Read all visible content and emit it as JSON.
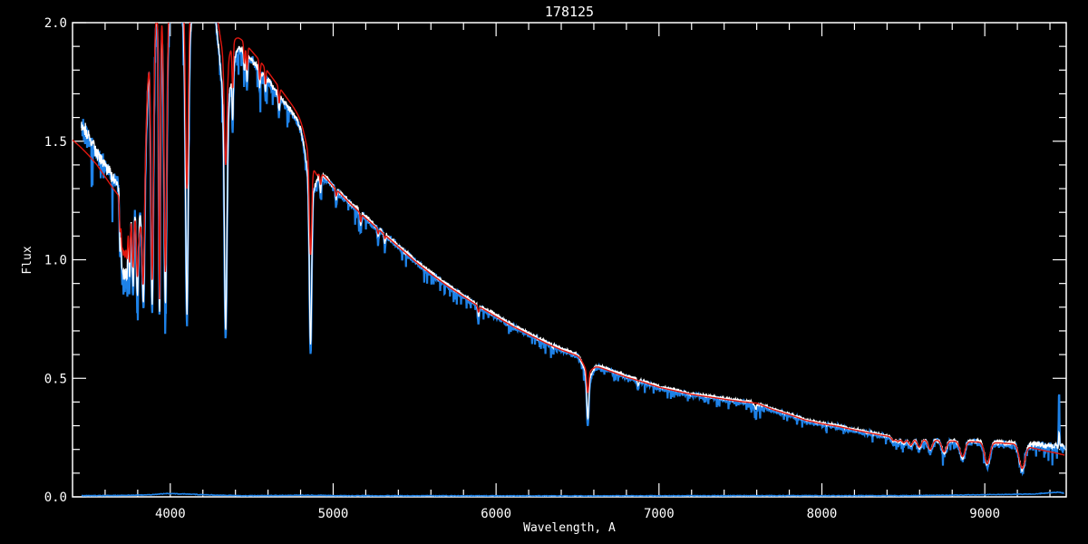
{
  "window": {
    "background": "#000000"
  },
  "chart_data": {
    "type": "line",
    "title": "178125",
    "xlabel": "Wavelength, A",
    "ylabel": "Flux",
    "xlim": [
      3400,
      9500
    ],
    "ylim": [
      0.0,
      2.0
    ],
    "grid": false,
    "frame": true,
    "legend": "none",
    "x_ticks": [
      {
        "v": 4000,
        "label": "4000"
      },
      {
        "v": 5000,
        "label": "5000"
      },
      {
        "v": 6000,
        "label": "6000"
      },
      {
        "v": 7000,
        "label": "7000"
      },
      {
        "v": 8000,
        "label": "8000"
      },
      {
        "v": 9000,
        "label": "9000"
      }
    ],
    "y_ticks": [
      {
        "v": 0.0,
        "label": "0.0"
      },
      {
        "v": 0.5,
        "label": "0.5"
      },
      {
        "v": 1.0,
        "label": "1.0"
      },
      {
        "v": 1.5,
        "label": "1.5"
      },
      {
        "v": 2.0,
        "label": "2.0"
      }
    ],
    "x_minor_step": 200,
    "y_minor_step": 0.1,
    "colors": {
      "observed_white": "#ffffff",
      "observed_blue": "#1e82e8",
      "model_red": "#e0170f",
      "axis": "#ffffff",
      "background": "#000000"
    },
    "series_names": [
      "observed (blue)",
      "observed (white)",
      "model fit (red)",
      "error spectrum (blue, bottom)"
    ],
    "data_range": [
      3455,
      9490
    ],
    "model_range": [
      3400,
      9490
    ],
    "continuum_observed": [
      [
        3455,
        1.57
      ],
      [
        3480,
        1.54
      ],
      [
        3520,
        1.49
      ],
      [
        3560,
        1.44
      ],
      [
        3600,
        1.4
      ],
      [
        3640,
        1.355
      ],
      [
        3680,
        1.315
      ],
      [
        3720,
        1.28
      ],
      [
        3750,
        1.26
      ],
      [
        3780,
        1.245
      ],
      [
        3805,
        1.235
      ],
      [
        3820,
        1.27
      ],
      [
        3840,
        1.45
      ],
      [
        3855,
        1.72
      ],
      [
        3870,
        2.02
      ],
      [
        3890,
        2.12
      ],
      [
        3950,
        2.2
      ],
      [
        4050,
        2.25
      ],
      [
        4150,
        2.2
      ],
      [
        4250,
        2.1
      ],
      [
        4310,
        2.0
      ],
      [
        4340,
        1.96
      ],
      [
        4380,
        1.93
      ],
      [
        4450,
        1.885
      ],
      [
        4550,
        1.8
      ],
      [
        4650,
        1.71
      ],
      [
        4750,
        1.62
      ],
      [
        4820,
        1.55
      ],
      [
        4860,
        1.49
      ],
      [
        4900,
        1.4
      ],
      [
        4920,
        1.375
      ],
      [
        5000,
        1.31
      ],
      [
        5100,
        1.245
      ],
      [
        5200,
        1.18
      ],
      [
        5300,
        1.12
      ],
      [
        5400,
        1.06
      ],
      [
        5500,
        1.0
      ],
      [
        5600,
        0.945
      ],
      [
        5700,
        0.895
      ],
      [
        5800,
        0.85
      ],
      [
        5900,
        0.805
      ],
      [
        6000,
        0.765
      ],
      [
        6100,
        0.725
      ],
      [
        6200,
        0.69
      ],
      [
        6300,
        0.655
      ],
      [
        6400,
        0.625
      ],
      [
        6500,
        0.6
      ],
      [
        6600,
        0.56
      ],
      [
        6700,
        0.535
      ],
      [
        6800,
        0.51
      ],
      [
        6900,
        0.49
      ],
      [
        7000,
        0.465
      ],
      [
        7100,
        0.45
      ],
      [
        7200,
        0.435
      ],
      [
        7300,
        0.425
      ],
      [
        7400,
        0.415
      ],
      [
        7500,
        0.405
      ],
      [
        7600,
        0.398
      ],
      [
        7700,
        0.37
      ],
      [
        7800,
        0.35
      ],
      [
        7900,
        0.325
      ],
      [
        8000,
        0.31
      ],
      [
        8100,
        0.3
      ],
      [
        8200,
        0.285
      ],
      [
        8300,
        0.27
      ],
      [
        8400,
        0.258
      ],
      [
        8450,
        0.25
      ],
      [
        8520,
        0.246
      ],
      [
        8600,
        0.244
      ],
      [
        8700,
        0.241
      ],
      [
        8800,
        0.237
      ],
      [
        8900,
        0.236
      ],
      [
        9000,
        0.232
      ],
      [
        9100,
        0.229
      ],
      [
        9200,
        0.226
      ],
      [
        9300,
        0.221
      ],
      [
        9400,
        0.217
      ],
      [
        9490,
        0.215
      ]
    ],
    "continuum_model": [
      [
        3400,
        1.505
      ],
      [
        3450,
        1.475
      ],
      [
        3500,
        1.44
      ],
      [
        3550,
        1.4
      ],
      [
        3600,
        1.35
      ],
      [
        3650,
        1.3
      ],
      [
        3700,
        1.255
      ],
      [
        3750,
        1.225
      ],
      [
        3790,
        1.2
      ],
      [
        3812,
        1.18
      ],
      [
        3830,
        1.28
      ],
      [
        3845,
        1.55
      ],
      [
        3860,
        1.85
      ],
      [
        3875,
        2.06
      ],
      [
        3890,
        2.12
      ],
      [
        3950,
        2.22
      ],
      [
        4050,
        2.27
      ],
      [
        4150,
        2.22
      ],
      [
        4250,
        2.12
      ],
      [
        4310,
        2.02
      ],
      [
        4340,
        1.99
      ],
      [
        4380,
        1.97
      ],
      [
        4450,
        1.92
      ],
      [
        4550,
        1.84
      ],
      [
        4650,
        1.745
      ],
      [
        4750,
        1.65
      ],
      [
        4820,
        1.575
      ],
      [
        4860,
        1.53
      ],
      [
        4900,
        1.4
      ],
      [
        4920,
        1.375
      ],
      [
        5000,
        1.31
      ],
      [
        5100,
        1.24
      ],
      [
        5200,
        1.175
      ],
      [
        5300,
        1.115
      ],
      [
        5400,
        1.055
      ],
      [
        5500,
        0.995
      ],
      [
        5600,
        0.94
      ],
      [
        5700,
        0.89
      ],
      [
        5800,
        0.845
      ],
      [
        5900,
        0.8
      ],
      [
        6000,
        0.76
      ],
      [
        6100,
        0.72
      ],
      [
        6200,
        0.685
      ],
      [
        6300,
        0.65
      ],
      [
        6400,
        0.62
      ],
      [
        6500,
        0.595
      ],
      [
        6600,
        0.555
      ],
      [
        6700,
        0.53
      ],
      [
        6800,
        0.505
      ],
      [
        6900,
        0.485
      ],
      [
        7000,
        0.462
      ],
      [
        7100,
        0.447
      ],
      [
        7200,
        0.432
      ],
      [
        7300,
        0.422
      ],
      [
        7400,
        0.412
      ],
      [
        7500,
        0.402
      ],
      [
        7600,
        0.395
      ],
      [
        7700,
        0.368
      ],
      [
        7800,
        0.347
      ],
      [
        7900,
        0.323
      ],
      [
        8000,
        0.308
      ],
      [
        8100,
        0.297
      ],
      [
        8200,
        0.282
      ],
      [
        8300,
        0.268
      ],
      [
        8400,
        0.256
      ],
      [
        8450,
        0.249
      ],
      [
        8520,
        0.244
      ],
      [
        8600,
        0.242
      ],
      [
        8700,
        0.239
      ],
      [
        8800,
        0.235
      ],
      [
        8900,
        0.233
      ],
      [
        9000,
        0.23
      ],
      [
        9100,
        0.227
      ],
      [
        9200,
        0.222
      ],
      [
        9250,
        0.215
      ],
      [
        9300,
        0.205
      ],
      [
        9350,
        0.197
      ],
      [
        9400,
        0.19
      ],
      [
        9450,
        0.183
      ],
      [
        9490,
        0.176
      ]
    ],
    "line_columns": [
      "center_A",
      "blue_tip_flux",
      "white_tip_flux",
      "model_tip_flux",
      "core_width_A",
      "wing_width_A",
      "wing_fraction"
    ],
    "absorption_lines": [
      [
        3692,
        1.02,
        1.05,
        1.12,
        4,
        0,
        0
      ],
      [
        3703,
        0.95,
        0.99,
        1.07,
        4,
        0,
        0
      ],
      [
        3712,
        0.93,
        0.97,
        1.05,
        4,
        0,
        0
      ],
      [
        3722,
        0.91,
        0.95,
        1.03,
        4.5,
        0,
        0
      ],
      [
        3734,
        0.89,
        0.93,
        1.01,
        5,
        0,
        0
      ],
      [
        3750,
        0.87,
        0.91,
        0.99,
        5,
        0,
        0
      ],
      [
        3771,
        0.85,
        0.89,
        0.97,
        5.5,
        0,
        0
      ],
      [
        3798,
        0.83,
        0.87,
        0.95,
        6,
        0,
        0
      ],
      [
        3835,
        0.81,
        0.85,
        0.93,
        7,
        25,
        0.15
      ],
      [
        3889,
        0.79,
        0.83,
        0.92,
        7.5,
        25,
        0.15
      ],
      [
        3934,
        0.89,
        0.92,
        0.97,
        5,
        0,
        0
      ],
      [
        3970,
        0.77,
        0.81,
        0.95,
        8,
        28,
        0.18
      ],
      [
        4102,
        0.74,
        0.78,
        1.3,
        8,
        30,
        0.22
      ],
      [
        4340,
        0.67,
        0.71,
        1.4,
        8,
        32,
        0.25
      ],
      [
        4383,
        1.68,
        1.71,
        1.78,
        4,
        0,
        0
      ],
      [
        4455,
        1.76,
        1.79,
        1.83,
        4,
        0,
        0
      ],
      [
        4471,
        1.72,
        1.75,
        1.8,
        4,
        0,
        0
      ],
      [
        4549,
        1.7,
        1.73,
        1.76,
        4,
        0,
        0
      ],
      [
        4584,
        1.68,
        1.71,
        1.74,
        3.5,
        0,
        0
      ],
      [
        4668,
        1.6,
        1.63,
        1.66,
        4,
        0,
        0
      ],
      [
        4861,
        0.61,
        0.645,
        1.02,
        7,
        30,
        0.2
      ],
      [
        4923,
        1.28,
        1.31,
        1.33,
        4,
        0,
        0
      ],
      [
        5018,
        1.22,
        1.25,
        1.27,
        4,
        0,
        0
      ],
      [
        5169,
        1.11,
        1.14,
        1.16,
        4,
        0,
        0
      ],
      [
        5276,
        1.06,
        1.09,
        1.11,
        3.5,
        0,
        0
      ],
      [
        5317,
        1.04,
        1.07,
        1.09,
        3.5,
        0,
        0
      ],
      [
        5892,
        0.73,
        0.76,
        0.78,
        4.5,
        0,
        0
      ],
      [
        6347,
        0.61,
        0.63,
        0.645,
        3.5,
        0,
        0
      ],
      [
        6371,
        0.615,
        0.635,
        0.65,
        3,
        0,
        0
      ],
      [
        6563,
        0.3,
        0.33,
        0.44,
        6,
        24,
        0.3
      ],
      [
        6872,
        0.45,
        0.47,
        -1,
        5,
        0,
        0
      ],
      [
        7186,
        0.42,
        0.435,
        -1,
        4,
        0,
        0
      ],
      [
        7594,
        0.355,
        0.375,
        -1,
        6,
        0,
        0
      ],
      [
        8438,
        0.225,
        0.235,
        0.238,
        10,
        0,
        0
      ],
      [
        8467,
        0.22,
        0.23,
        0.233,
        10,
        0,
        0
      ],
      [
        8502,
        0.215,
        0.225,
        0.228,
        11,
        0,
        0
      ],
      [
        8545,
        0.205,
        0.215,
        0.218,
        12,
        0,
        0
      ],
      [
        8598,
        0.195,
        0.205,
        0.21,
        12,
        0,
        0
      ],
      [
        8665,
        0.185,
        0.195,
        0.2,
        13,
        0,
        0
      ],
      [
        8750,
        0.175,
        0.185,
        0.19,
        14,
        0,
        0
      ],
      [
        8863,
        0.155,
        0.165,
        0.17,
        15,
        0,
        0
      ],
      [
        9015,
        0.125,
        0.135,
        0.14,
        16,
        0,
        0
      ],
      [
        9229,
        0.105,
        0.115,
        0.12,
        17,
        0,
        0
      ]
    ],
    "noise_profile": [
      [
        3455,
        0.04
      ],
      [
        3600,
        0.032
      ],
      [
        3800,
        0.028
      ],
      [
        4300,
        0.02
      ],
      [
        4900,
        0.016
      ],
      [
        5500,
        0.012
      ],
      [
        6000,
        0.011
      ],
      [
        6600,
        0.009
      ],
      [
        7000,
        0.008
      ],
      [
        7600,
        0.008
      ],
      [
        8200,
        0.008
      ],
      [
        8600,
        0.009
      ],
      [
        8900,
        0.012
      ],
      [
        9200,
        0.015
      ],
      [
        9490,
        0.018
      ]
    ],
    "telluric_band": [
      7565,
      7650
    ],
    "emission_spike": {
      "center": 9456,
      "width": 2.5,
      "blue": 0.23,
      "white": 0.06
    },
    "error_spectrum": [
      [
        3455,
        0.005
      ],
      [
        3700,
        0.006
      ],
      [
        3850,
        0.008
      ],
      [
        3980,
        0.014
      ],
      [
        4100,
        0.012
      ],
      [
        4200,
        0.009
      ],
      [
        4350,
        0.006
      ],
      [
        4500,
        0.005
      ],
      [
        4861,
        0.007
      ],
      [
        5000,
        0.005
      ],
      [
        6500,
        0.004
      ],
      [
        7600,
        0.005
      ],
      [
        8500,
        0.005
      ],
      [
        8900,
        0.008
      ],
      [
        9100,
        0.01
      ],
      [
        9300,
        0.012
      ],
      [
        9456,
        0.02
      ],
      [
        9490,
        0.015
      ]
    ]
  }
}
